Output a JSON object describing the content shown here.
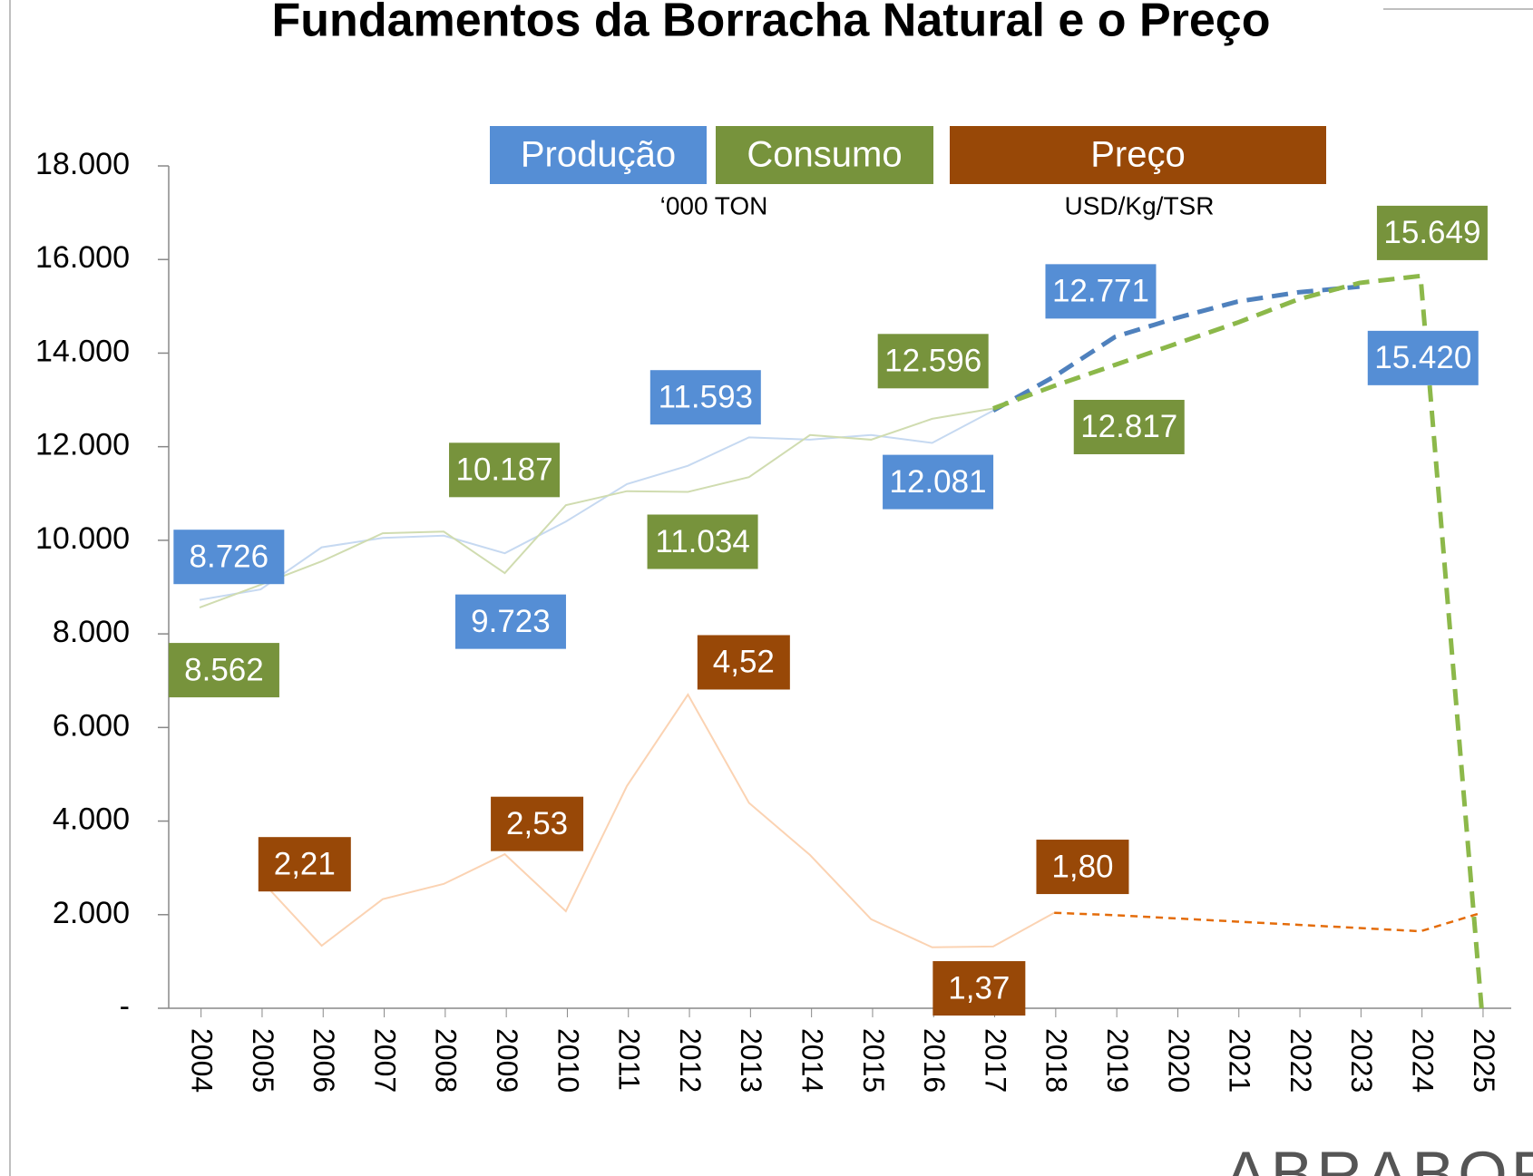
{
  "chart_data": {
    "type": "line",
    "title": "Fundamentos da Borracha Natural e o Preço",
    "y_label": "‘000 TON",
    "y2_label": "USD/Kg/TSR",
    "logo": "ABRABOR",
    "categories": [
      "2004",
      "2005",
      "2006",
      "2007",
      "2008",
      "2009",
      "2010",
      "2011",
      "2012",
      "2013",
      "2014",
      "2015",
      "2016",
      "2017",
      "2018",
      "2019",
      "2020",
      "2021",
      "2022",
      "2023",
      "2024",
      "2025"
    ],
    "ylim": [
      0,
      18000
    ],
    "yticks": [
      {
        "value": 0,
        "label": "-"
      },
      {
        "value": 2000,
        "label": "2.000"
      },
      {
        "value": 4000,
        "label": "4.000"
      },
      {
        "value": 6000,
        "label": "6.000"
      },
      {
        "value": 8000,
        "label": "8.000"
      },
      {
        "value": 10000,
        "label": "10.000"
      },
      {
        "value": 12000,
        "label": "12.000"
      },
      {
        "value": 14000,
        "label": "14.000"
      },
      {
        "value": 16000,
        "label": "16.000"
      },
      {
        "value": 18000,
        "label": "18.000"
      }
    ],
    "y2lim": [
      0.61,
      11.11
    ],
    "series": [
      {
        "name": "Produção",
        "color": "#558ed5",
        "line_color": "#c6d9f1",
        "projection_color": "#4f81bd",
        "projected_from": "2017",
        "values": [
          8726,
          8950,
          9850,
          10050,
          10100,
          9723,
          10400,
          11200,
          11593,
          12200,
          12150,
          12250,
          12081,
          12771,
          13500,
          14350,
          14750,
          15100,
          15300,
          15420,
          null,
          null
        ],
        "value_labels": [
          "8.726",
          null,
          null,
          null,
          null,
          "9.723",
          null,
          null,
          "11.593",
          null,
          null,
          null,
          "12.081",
          "12.771",
          null,
          null,
          null,
          null,
          null,
          "15.420",
          null,
          null
        ]
      },
      {
        "name": "Consumo",
        "color": "#77933c",
        "line_color": "#d0dcb0",
        "projection_color": "#8cb84a",
        "projected_from": "2017",
        "values": [
          8562,
          9050,
          9550,
          10150,
          10187,
          9300,
          10750,
          11050,
          11034,
          11350,
          12250,
          12150,
          12596,
          12817,
          13300,
          13750,
          14200,
          14650,
          15150,
          15500,
          15649,
          0
        ],
        "value_labels": [
          "8.562",
          null,
          null,
          null,
          "10.187",
          null,
          null,
          null,
          "11.034",
          null,
          null,
          null,
          "12.596",
          "12.817",
          null,
          null,
          null,
          null,
          null,
          null,
          "15.649",
          null
        ]
      },
      {
        "name": "Preço",
        "color": "#984807",
        "line_color": "#fbd3b3",
        "projection_color": "#e46c0a",
        "projected_from": "2018",
        "axis": "y2",
        "values": [
          null,
          2.21,
          1.39,
          1.97,
          2.16,
          2.53,
          1.82,
          3.38,
          4.52,
          3.17,
          2.52,
          1.72,
          1.37,
          1.38,
          1.8,
          1.77,
          1.73,
          1.69,
          1.65,
          1.61,
          1.57,
          1.8
        ],
        "value_labels": [
          null,
          "2,21",
          null,
          null,
          null,
          "2,53",
          null,
          null,
          "4,52",
          null,
          null,
          null,
          "1,37",
          null,
          "1,80",
          null,
          null,
          null,
          null,
          null,
          null,
          null
        ]
      }
    ]
  }
}
